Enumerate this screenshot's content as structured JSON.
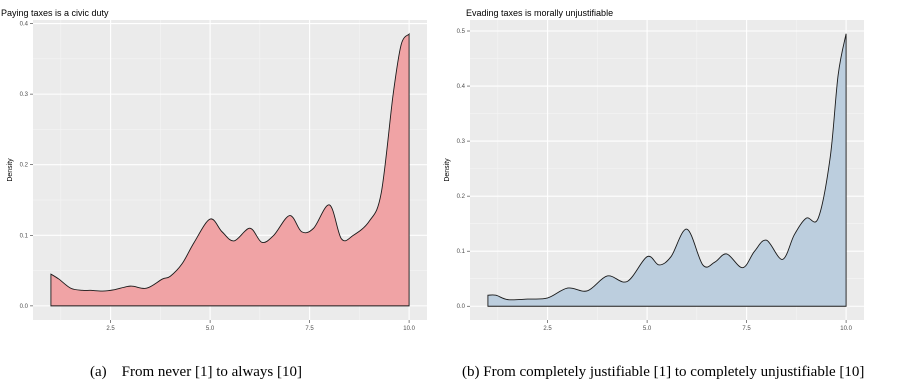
{
  "chart_data": [
    {
      "type": "area",
      "title": "Paying taxes is a civic duty",
      "xlabel": "",
      "ylabel": "Density",
      "xlim": [
        0.55,
        10.45
      ],
      "ylim": [
        -0.02,
        0.405
      ],
      "xticks": [
        "2.5",
        "5.0",
        "7.5",
        "10.0"
      ],
      "xtick_values": [
        2.5,
        5.0,
        7.5,
        10.0
      ],
      "yticks": [
        "0.0",
        "0.1",
        "0.2",
        "0.3",
        "0.4"
      ],
      "ytick_values": [
        0.0,
        0.1,
        0.2,
        0.3,
        0.4
      ],
      "fill": "#f0a3a5",
      "grid": true,
      "x": [
        1.0,
        1.2,
        1.5,
        1.8,
        2.0,
        2.3,
        2.6,
        3.0,
        3.4,
        3.8,
        4.0,
        4.3,
        4.6,
        5.0,
        5.3,
        5.6,
        6.0,
        6.3,
        6.6,
        7.0,
        7.3,
        7.6,
        8.0,
        8.3,
        8.6,
        9.0,
        9.3,
        9.6,
        9.8,
        10.0
      ],
      "values": [
        0.045,
        0.038,
        0.025,
        0.022,
        0.022,
        0.021,
        0.023,
        0.028,
        0.025,
        0.038,
        0.042,
        0.06,
        0.09,
        0.123,
        0.105,
        0.092,
        0.11,
        0.09,
        0.1,
        0.128,
        0.105,
        0.11,
        0.143,
        0.095,
        0.1,
        0.12,
        0.16,
        0.3,
        0.37,
        0.385
      ],
      "caption": "(a)    From never [1] to always [10]"
    },
    {
      "type": "area",
      "title": "Evading taxes is morally unjustifiable",
      "xlabel": "",
      "ylabel": "Density",
      "xlim": [
        0.55,
        10.45
      ],
      "ylim": [
        -0.025,
        0.52
      ],
      "xticks": [
        "2.5",
        "5.0",
        "7.5",
        "10.0"
      ],
      "xtick_values": [
        2.5,
        5.0,
        7.5,
        10.0
      ],
      "yticks": [
        "0.0",
        "0.1",
        "0.2",
        "0.3",
        "0.4",
        "0.5"
      ],
      "ytick_values": [
        0.0,
        0.1,
        0.2,
        0.3,
        0.4,
        0.5
      ],
      "fill": "#bccede",
      "grid": true,
      "x": [
        1.0,
        1.2,
        1.5,
        2.0,
        2.5,
        3.0,
        3.5,
        4.0,
        4.5,
        5.0,
        5.3,
        5.6,
        6.0,
        6.4,
        6.7,
        7.0,
        7.4,
        7.7,
        8.0,
        8.4,
        8.7,
        9.0,
        9.3,
        9.6,
        9.8,
        10.0
      ],
      "values": [
        0.02,
        0.02,
        0.012,
        0.013,
        0.015,
        0.033,
        0.028,
        0.055,
        0.045,
        0.09,
        0.075,
        0.09,
        0.14,
        0.075,
        0.08,
        0.095,
        0.07,
        0.1,
        0.12,
        0.085,
        0.13,
        0.16,
        0.16,
        0.27,
        0.42,
        0.495
      ],
      "caption": "(b) From completely justifiable [1] to completely unjustifiable [10]"
    }
  ]
}
